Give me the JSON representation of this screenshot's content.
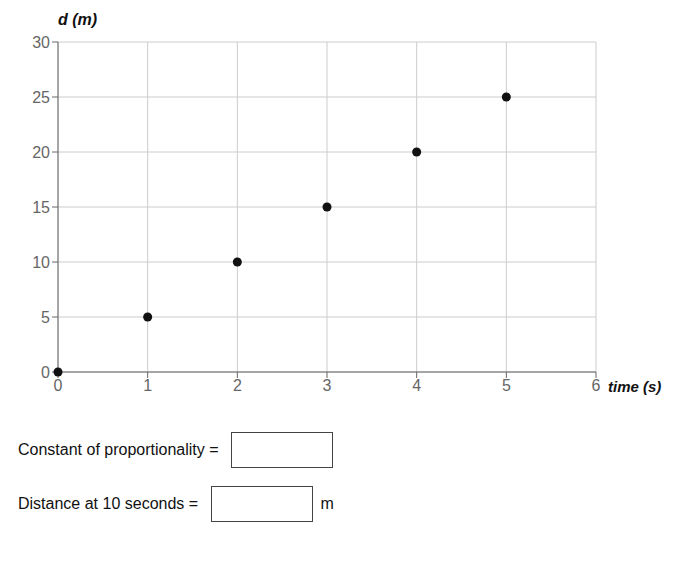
{
  "chart_data": {
    "type": "scatter",
    "title": "d (m)",
    "xlabel": "time (s)",
    "x": [
      0,
      1,
      2,
      3,
      4,
      5
    ],
    "values": [
      0,
      5,
      10,
      15,
      20,
      25
    ],
    "color": "#111111",
    "xlim": [
      0,
      6
    ],
    "ylim": [
      0,
      30
    ],
    "xticks": [
      0,
      1,
      2,
      3,
      4,
      5,
      6
    ],
    "yticks": [
      0,
      5,
      10,
      15,
      20,
      25,
      30
    ],
    "grid": true,
    "annotations": [
      "Constant of proportionality = ",
      "Distance at 10 seconds = ",
      "m"
    ]
  }
}
